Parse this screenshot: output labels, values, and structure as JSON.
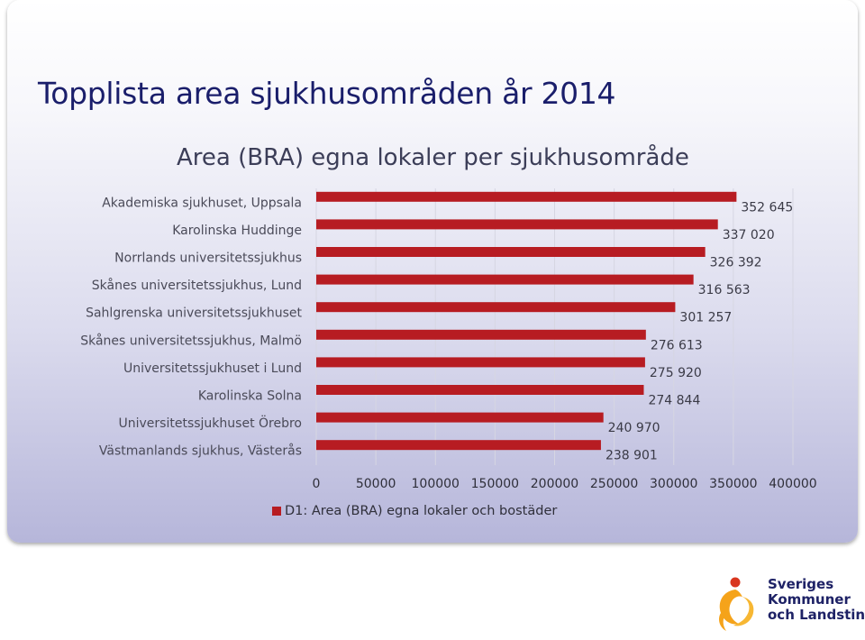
{
  "slide": {
    "title": "Topplista area sjukhusområden år 2014"
  },
  "chart_data": {
    "type": "bar",
    "orientation": "horizontal",
    "title": "Area (BRA) egna lokaler per sjukhusområde",
    "categories": [
      "Akademiska sjukhuset, Uppsala",
      "Karolinska Huddinge",
      "Norrlands universitetssjukhus",
      "Skånes universitetssjukhus, Lund",
      "Sahlgrenska universitetssjukhuset",
      "Skånes universitetssjukhus, Malmö",
      "Universitetssjukhuset i Lund",
      "Karolinska Solna",
      "Universitetssjukhuset Örebro",
      "Västmanlands sjukhus, Västerås"
    ],
    "series": [
      {
        "name": "D1: Area (BRA) egna lokaler och bostäder",
        "color": "#b71c22",
        "values": [
          352645,
          337020,
          326392,
          316563,
          301257,
          276613,
          275920,
          274844,
          240970,
          238901
        ],
        "value_labels": [
          "352 645",
          "337 020",
          "326 392",
          "316 563",
          "301 257",
          "276 613",
          "275 920",
          "274 844",
          "240 970",
          "238 901"
        ]
      }
    ],
    "xlim": [
      0,
      400000
    ],
    "x_ticks": [
      0,
      50000,
      100000,
      150000,
      200000,
      250000,
      300000,
      350000,
      400000
    ],
    "x_tick_labels": [
      "0",
      "50000",
      "100000",
      "150000",
      "200000",
      "250000",
      "300000",
      "350000",
      "400000"
    ],
    "grid": true,
    "legend_position": "bottom"
  },
  "logo": {
    "lines": [
      "Sveriges",
      "Kommuner",
      "och Landsting"
    ]
  },
  "colors": {
    "title": "#1a1e6b",
    "bar": "#b71c22",
    "background_bottom": "#b6b6da",
    "logo_orange": "#f5a31a",
    "logo_red": "#d9361f"
  }
}
